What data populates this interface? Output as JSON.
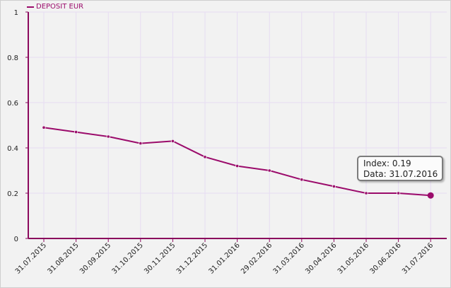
{
  "chart_data": {
    "type": "line",
    "legend_position": "top-left",
    "grid": true,
    "ylim": [
      0,
      1
    ],
    "y_ticks": [
      "0",
      "0.2",
      "0.4",
      "0.6",
      "0.8",
      "1"
    ],
    "categories": [
      "31.07.2015",
      "31.08.2015",
      "30.09.2015",
      "31.10.2015",
      "30.11.2015",
      "31.12.2015",
      "31.01.2016",
      "29.02.2016",
      "31.03.2016",
      "30.04.2016",
      "31.05.2016",
      "30.06.2016",
      "31.07.2016"
    ],
    "series": [
      {
        "name": "DEPOSIT EUR",
        "values": [
          0.49,
          0.47,
          0.45,
          0.42,
          0.43,
          0.36,
          0.32,
          0.3,
          0.26,
          0.23,
          0.2,
          0.2,
          0.19
        ]
      }
    ],
    "tooltip": {
      "index_text": "Index: 0.19",
      "date_text": "Data: 31.07.2016",
      "point": 12
    },
    "colors": {
      "series": "#9b0b6b",
      "axis": "#8b0a5e",
      "grid": "#e7dcf3",
      "text": "#222222"
    }
  }
}
